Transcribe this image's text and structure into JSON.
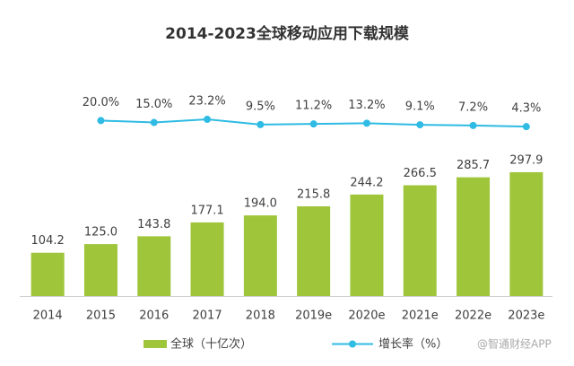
{
  "chart_data": {
    "type": "bar_line",
    "title": "2014-2023全球移动应用下载规模",
    "categories": [
      "2014",
      "2015",
      "2016",
      "2017",
      "2018",
      "2019e",
      "2020e",
      "2021e",
      "2022e",
      "2023e"
    ],
    "series": [
      {
        "name": "全球（十亿次）",
        "color": "#9fc63b",
        "type": "bar",
        "values": [
          104.2,
          125.0,
          143.8,
          177.1,
          194.0,
          215.8,
          244.2,
          266.5,
          285.7,
          297.9
        ],
        "value_labels": [
          "104.2",
          "125.0",
          "143.8",
          "177.1",
          "194.0",
          "215.8",
          "244.2",
          "266.5",
          "285.7",
          "297.9"
        ]
      },
      {
        "name": "增长率（%）",
        "color": "#2fbbe3",
        "type": "line",
        "axis": "y2",
        "values": [
          null,
          20.0,
          15.0,
          23.2,
          9.5,
          11.2,
          13.2,
          9.1,
          7.2,
          4.3
        ],
        "value_labels": [
          null,
          "20.0%",
          "15.0%",
          "23.2%",
          "9.5%",
          "11.2%",
          "13.2%",
          "9.1%",
          "7.2%",
          "4.3%"
        ]
      }
    ],
    "ylim": [
      0,
      300
    ],
    "y2lim": [
      0,
      100
    ],
    "legend": "bottom",
    "watermark": "@智通财经APP"
  }
}
